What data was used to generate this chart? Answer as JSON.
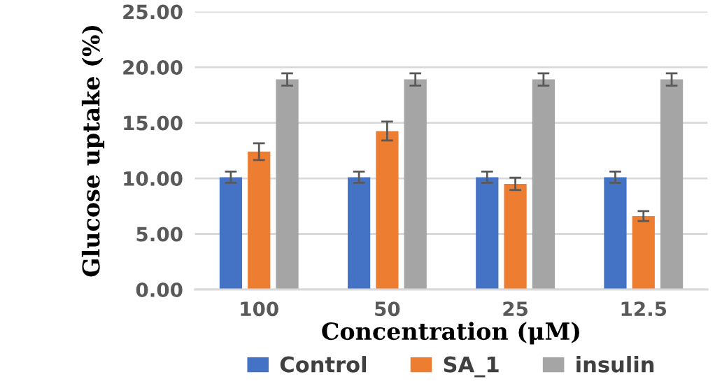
{
  "chart_data": {
    "type": "bar",
    "xlabel": "Concentration (μM)",
    "ylabel": "Glucose uptake (%)",
    "categories": [
      "100",
      "50",
      "25",
      "12.5"
    ],
    "series": [
      {
        "name": "Control",
        "color": "#4472c4",
        "values": [
          10.1,
          10.1,
          10.1,
          10.1
        ],
        "errors": [
          0.5,
          0.5,
          0.5,
          0.5
        ]
      },
      {
        "name": "SA_1",
        "color": "#ed7d31",
        "values": [
          12.4,
          14.25,
          9.5,
          6.6
        ],
        "errors": [
          0.75,
          0.85,
          0.55,
          0.45
        ]
      },
      {
        "name": "insulin",
        "color": "#a5a5a5",
        "values": [
          18.9,
          18.9,
          18.9,
          18.9
        ],
        "errors": [
          0.55,
          0.55,
          0.55,
          0.55
        ]
      }
    ],
    "ylim": [
      0,
      25
    ],
    "yticks": [
      {
        "value": 0,
        "label": "0.00"
      },
      {
        "value": 5,
        "label": "5.00"
      },
      {
        "value": 10,
        "label": "10.00"
      },
      {
        "value": 15,
        "label": "15.00"
      },
      {
        "value": 20,
        "label": "20.00"
      },
      {
        "value": 25,
        "label": "25.00"
      }
    ],
    "grid": "y",
    "legend": "bottom"
  }
}
